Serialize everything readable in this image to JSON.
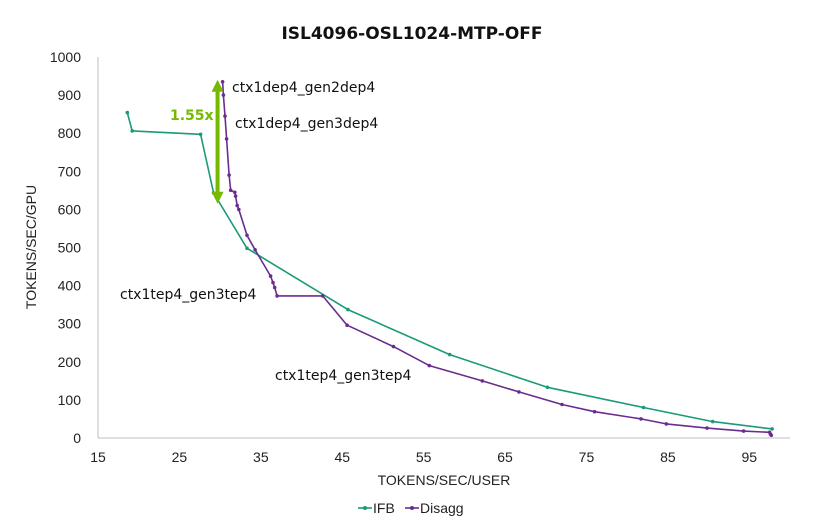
{
  "chart_data": {
    "type": "line",
    "title": "ISL4096-OSL1024-MTP-OFF",
    "xlabel": "TOKENS/SEC/USER",
    "ylabel": "TOKENS/SEC/GPU",
    "xlim": [
      15,
      100
    ],
    "ylim": [
      0,
      1000
    ],
    "x_ticks": [
      "15",
      "25",
      "35",
      "45",
      "55",
      "65",
      "75",
      "85",
      "95"
    ],
    "y_ticks": [
      "0",
      "100",
      "200",
      "300",
      "400",
      "500",
      "600",
      "700",
      "800",
      "900",
      "1000"
    ],
    "grid": false,
    "legend_position": "bottom",
    "series": [
      {
        "name": "IFB",
        "color": "#1a9a78",
        "points": [
          [
            18.6,
            854
          ],
          [
            19.2,
            806
          ],
          [
            27.6,
            797
          ],
          [
            29.2,
            643
          ],
          [
            33.3,
            498
          ],
          [
            45.7,
            337
          ],
          [
            58.2,
            219
          ],
          [
            70.2,
            133
          ],
          [
            82.0,
            80
          ],
          [
            90.5,
            43
          ],
          [
            97.8,
            24
          ]
        ]
      },
      {
        "name": "Disagg",
        "color": "#6b2c8f",
        "points": [
          [
            30.3,
            935
          ],
          [
            30.4,
            900
          ],
          [
            30.6,
            845
          ],
          [
            30.8,
            785
          ],
          [
            31.1,
            690
          ],
          [
            31.3,
            650
          ],
          [
            31.8,
            645
          ],
          [
            31.9,
            635
          ],
          [
            32.1,
            610
          ],
          [
            32.3,
            600
          ],
          [
            33.3,
            532
          ],
          [
            34.3,
            494
          ],
          [
            36.2,
            425
          ],
          [
            36.5,
            408
          ],
          [
            36.7,
            395
          ],
          [
            37.0,
            373
          ],
          [
            42.6,
            373
          ],
          [
            45.6,
            296
          ],
          [
            51.3,
            240
          ],
          [
            55.7,
            190
          ],
          [
            62.2,
            150
          ],
          [
            66.7,
            121
          ],
          [
            72.0,
            88
          ],
          [
            76.0,
            69
          ],
          [
            81.7,
            50
          ],
          [
            84.8,
            37
          ],
          [
            89.8,
            26
          ],
          [
            94.3,
            18
          ],
          [
            97.5,
            15
          ],
          [
            97.6,
            10
          ],
          [
            97.7,
            7
          ]
        ]
      }
    ],
    "annotations": [
      "ctx1dep4_gen2dep4",
      "ctx1dep4_gen3dep4",
      "ctx1tep4_gen3tep4",
      "ctx1tep4_gen3tep4",
      "1.55x"
    ],
    "highlight": {
      "x": 30.3,
      "y_from": 620,
      "y_to": 935,
      "color": "#76b900"
    }
  }
}
